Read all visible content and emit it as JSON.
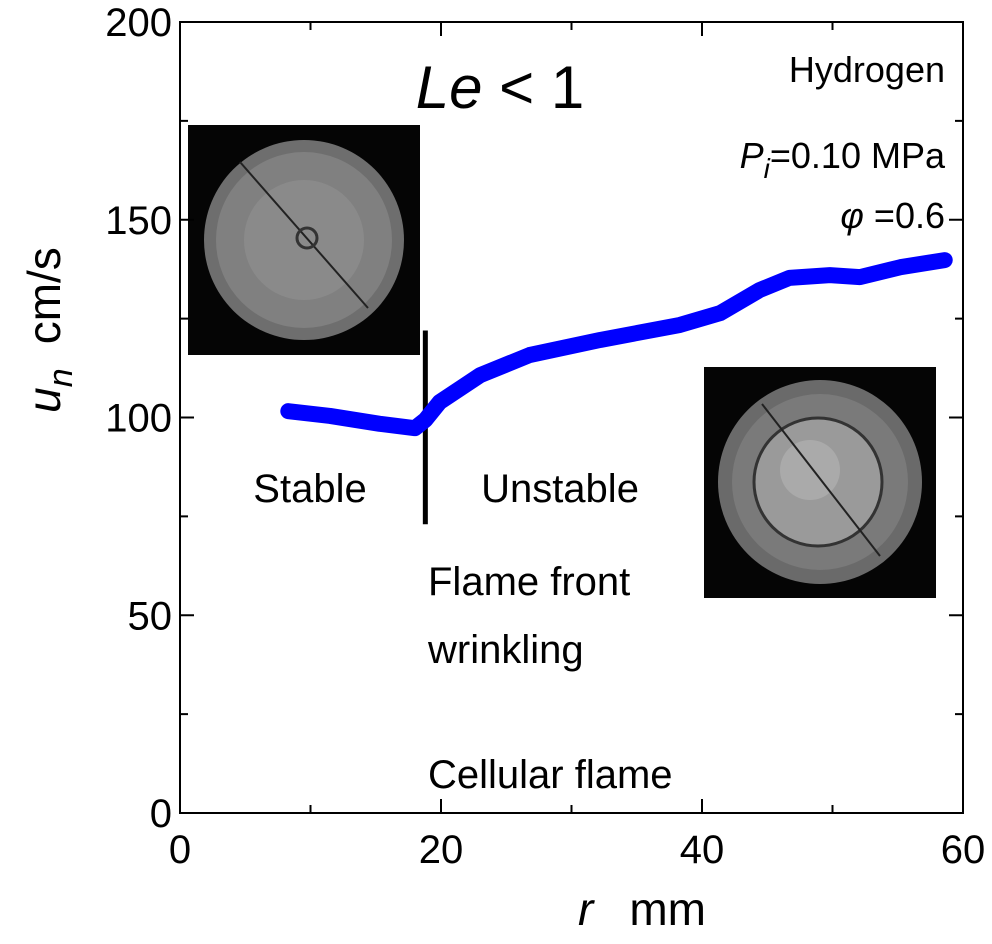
{
  "chart_data": {
    "type": "line",
    "x_label": {
      "symbol": "r",
      "unit": "mm"
    },
    "y_label": {
      "symbol": "u",
      "subscript": "n",
      "unit": "cm/s"
    },
    "x": [
      8.3,
      11.5,
      15.3,
      18.0,
      18.8,
      19.9,
      23.0,
      26.8,
      32.2,
      38.3,
      41.4,
      44.4,
      46.7,
      49.8,
      52.1,
      55.2,
      58.6
    ],
    "series": [
      {
        "color": "#0000ff",
        "values": [
          101.6,
          100.4,
          98.4,
          97.3,
          99.4,
          103.9,
          110.7,
          115.8,
          119.6,
          123.4,
          126.4,
          132.2,
          135.3,
          136.0,
          135.5,
          138.0,
          139.8
        ]
      }
    ],
    "xlim": [
      0,
      60
    ],
    "xticks": [
      0,
      20,
      40,
      60
    ],
    "xminorticks": [
      10,
      30,
      50
    ],
    "ylim": [
      0,
      200
    ],
    "yticks": [
      0,
      50,
      100,
      150,
      200
    ],
    "yminorticks": [
      25,
      75,
      125,
      175
    ],
    "divider": {
      "x": 18.8,
      "y": [
        122,
        73
      ]
    },
    "annotations": {
      "le": {
        "symbol": "Le",
        "text": "< 1"
      },
      "fuel": "Hydrogen",
      "pressure": {
        "symbol": "P",
        "subscript": "i",
        "text": "=0.10 MPa"
      },
      "ratio": {
        "symbol": "φ",
        "text": "=0.6"
      },
      "stable": "Stable",
      "unstable": "Unstable",
      "wrinkling": [
        "Flame front",
        "wrinkling"
      ],
      "cellular": "Cellular flame"
    }
  }
}
